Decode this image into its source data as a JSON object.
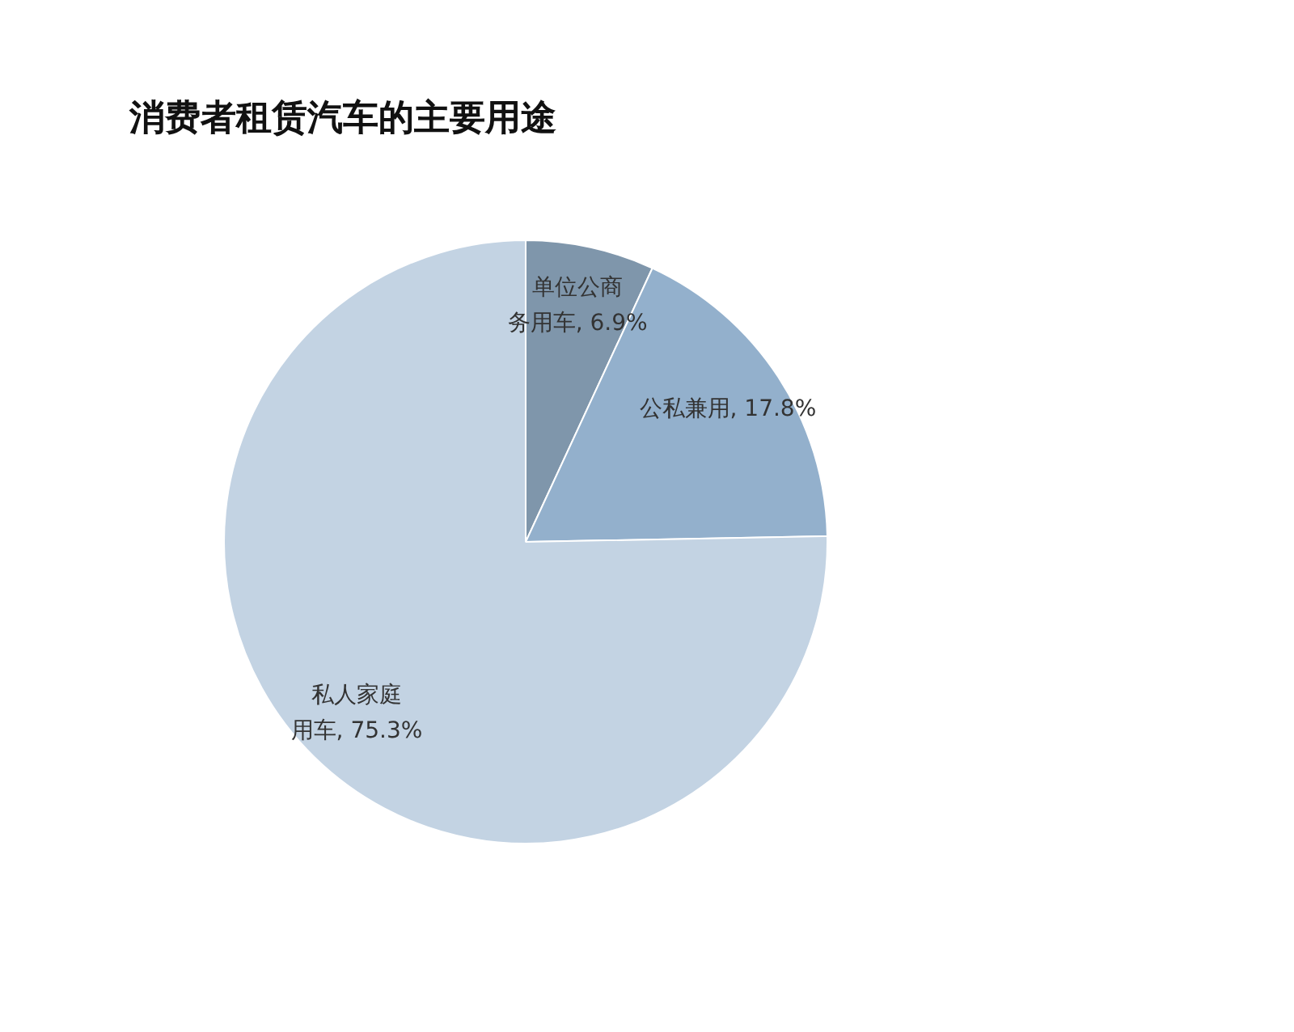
{
  "chart_data": {
    "type": "pie",
    "title": "消费者租赁汽车的主要用途",
    "categories": [
      "单位公商务用车",
      "公私兼用",
      "私人家庭用车"
    ],
    "values": [
      6.9,
      17.8,
      75.3
    ],
    "colors": [
      "#7f96ab",
      "#93b0cc",
      "#c3d3e3"
    ],
    "value_labels": [
      "6.9%",
      "17.8%",
      "75.3%"
    ],
    "legend": false
  }
}
